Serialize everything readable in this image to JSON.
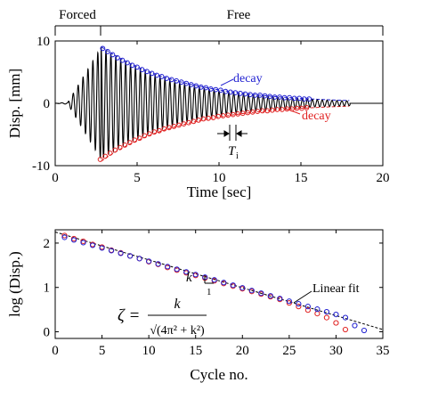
{
  "chart_data": [
    {
      "type": "line",
      "xlabel": "Time [sec]",
      "ylabel": "Disp. [mm]",
      "xlim": [
        0,
        20
      ],
      "ylim": [
        -10,
        10
      ],
      "x_ticks": [
        0,
        5,
        10,
        15,
        20
      ],
      "y_ticks": [
        -10,
        0,
        10
      ],
      "grid": false,
      "phases": [
        {
          "label": "Forced",
          "x_start": 0,
          "x_end": 2.8
        },
        {
          "label": "Free",
          "x_start": 2.8,
          "x_end": 20
        }
      ],
      "period_annotation": {
        "label": "T",
        "subscript": "i",
        "x_start": 10.75,
        "x_end": 11.15
      },
      "series": [
        {
          "role": "signal",
          "color": "#000000",
          "segments": [
            {
              "x_start": 0.0,
              "x_end": 0.8,
              "amplitude_start": 0.0,
              "amplitude_end": 0.15,
              "period_s": 0.4
            },
            {
              "x_start": 0.8,
              "x_end": 2.8,
              "amplitude_start": 0.3,
              "amplitude_end": 9.0,
              "period_s": 0.3
            },
            {
              "x_start": 2.8,
              "x_end": 18.0,
              "amplitude_start": 9.0,
              "amplitude_end": 0.4,
              "decay_rate": 0.21,
              "period_s": 0.3
            },
            {
              "x_start": 18.0,
              "x_end": 20.0,
              "amplitude_start": 0.0,
              "amplitude_end": 0.0
            }
          ]
        },
        {
          "label": "decay",
          "role": "upper-peaks",
          "color": "#1f1fd0",
          "peak_times": [
            2.9,
            3.2,
            3.5,
            3.8,
            4.1,
            4.4,
            4.7,
            5.0,
            5.3,
            5.6,
            5.9,
            6.2,
            6.5,
            6.8,
            7.1,
            7.4,
            7.7,
            8.0,
            8.3,
            8.6,
            8.9,
            9.2,
            9.5,
            9.8,
            10.1,
            10.4,
            10.7,
            11.0,
            11.3,
            11.6,
            11.9,
            12.2,
            12.5,
            12.8,
            13.1,
            13.4,
            13.7,
            14.0,
            14.3,
            14.6,
            14.9,
            15.2,
            15.5
          ],
          "peak_values": [
            8.8,
            8.3,
            7.8,
            7.3,
            6.9,
            6.5,
            6.1,
            5.8,
            5.4,
            5.1,
            4.8,
            4.5,
            4.3,
            4.0,
            3.8,
            3.6,
            3.4,
            3.2,
            3.0,
            2.8,
            2.6,
            2.5,
            2.3,
            2.2,
            2.1,
            1.9,
            1.8,
            1.7,
            1.6,
            1.5,
            1.4,
            1.3,
            1.3,
            1.2,
            1.1,
            1.0,
            1.0,
            0.9,
            0.9,
            0.8,
            0.8,
            0.7,
            0.7
          ],
          "envelope": {
            "x_start": 2.8,
            "x_end": 18.0,
            "a0": 9.1,
            "rate": 0.2
          }
        },
        {
          "label": "decay",
          "role": "lower-peaks",
          "color": "#e02020",
          "peak_times": [
            2.75,
            3.05,
            3.35,
            3.65,
            3.95,
            4.25,
            4.55,
            4.85,
            5.15,
            5.45,
            5.75,
            6.05,
            6.35,
            6.65,
            6.95,
            7.25,
            7.55,
            7.85,
            8.15,
            8.45,
            8.75,
            9.05,
            9.35,
            9.65,
            9.95,
            10.25,
            10.55,
            10.85,
            11.15,
            11.45,
            11.75,
            12.05,
            12.35,
            12.65,
            12.95,
            13.25,
            13.55,
            13.85,
            14.15,
            14.45,
            14.75,
            15.05,
            15.35
          ],
          "peak_values": [
            -9.0,
            -8.5,
            -8.0,
            -7.5,
            -7.1,
            -6.7,
            -6.3,
            -5.9,
            -5.6,
            -5.2,
            -4.9,
            -4.6,
            -4.4,
            -4.1,
            -3.9,
            -3.7,
            -3.5,
            -3.3,
            -3.1,
            -2.9,
            -2.7,
            -2.5,
            -2.4,
            -2.3,
            -2.1,
            -2.0,
            -1.9,
            -1.8,
            -1.7,
            -1.6,
            -1.5,
            -1.4,
            -1.3,
            -1.2,
            -1.2,
            -1.1,
            -1.0,
            -1.0,
            -0.9,
            -0.9,
            -0.8,
            -0.8,
            -0.7
          ],
          "envelope": {
            "x_start": 2.8,
            "x_end": 18.0,
            "a0": -9.3,
            "rate": 0.2
          }
        }
      ],
      "annotations": [
        {
          "text": "decay",
          "color": "#1f1fd0",
          "x": 11.1,
          "y": 3.0,
          "arrow_to": [
            10.3,
            2.0
          ]
        },
        {
          "text": "decay",
          "color": "#e02020",
          "x": 14.5,
          "y": -1.5,
          "arrow_to": [
            13.9,
            -0.95
          ]
        }
      ]
    },
    {
      "type": "scatter",
      "xlabel": "Cycle no.",
      "ylabel": "log (Disp.)",
      "xlim": [
        0,
        35
      ],
      "ylim": [
        -0.15,
        2.3
      ],
      "x_ticks": [
        0,
        5,
        10,
        15,
        20,
        25,
        30,
        35
      ],
      "y_ticks": [
        0,
        1,
        2
      ],
      "grid": false,
      "fit": {
        "label": "Linear fit",
        "x": [
          0,
          35
        ],
        "y": [
          2.25,
          0.05
        ],
        "slope_label": "k",
        "slope_run_label": "1"
      },
      "formula": {
        "lhs": "ζ =",
        "numerator": "k",
        "denominator": "√(4π² + k²)"
      },
      "series": [
        {
          "role": "lower-peaks",
          "color": "#e02020",
          "x": [
            1,
            2,
            3,
            4,
            5,
            6,
            7,
            8,
            9,
            10,
            11,
            12,
            13,
            14,
            15,
            16,
            17,
            18,
            19,
            20,
            21,
            22,
            23,
            24,
            25,
            26,
            27,
            28,
            29,
            30,
            31
          ],
          "y": [
            2.17,
            2.1,
            2.04,
            1.97,
            1.91,
            1.84,
            1.78,
            1.71,
            1.65,
            1.58,
            1.52,
            1.45,
            1.39,
            1.33,
            1.27,
            1.21,
            1.15,
            1.09,
            1.03,
            0.97,
            0.91,
            0.85,
            0.79,
            0.73,
            0.65,
            0.57,
            0.49,
            0.41,
            0.32,
            0.2,
            0.05
          ]
        },
        {
          "role": "upper-peaks",
          "color": "#1f1fd0",
          "x": [
            1,
            2,
            3,
            4,
            5,
            6,
            7,
            8,
            9,
            10,
            11,
            12,
            13,
            14,
            15,
            16,
            17,
            18,
            19,
            20,
            21,
            22,
            23,
            24,
            25,
            26,
            27,
            28,
            29,
            30,
            31,
            32,
            33
          ],
          "y": [
            2.13,
            2.07,
            2.01,
            1.95,
            1.89,
            1.83,
            1.77,
            1.71,
            1.65,
            1.59,
            1.53,
            1.47,
            1.41,
            1.35,
            1.29,
            1.23,
            1.17,
            1.11,
            1.05,
            0.99,
            0.93,
            0.87,
            0.81,
            0.75,
            0.69,
            0.63,
            0.57,
            0.51,
            0.45,
            0.39,
            0.32,
            0.14,
            0.03
          ]
        }
      ]
    }
  ]
}
